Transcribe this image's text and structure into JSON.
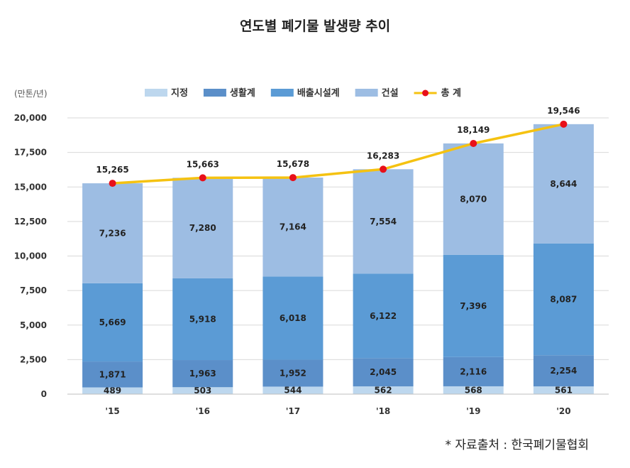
{
  "title": "연도별 폐기물 발생량 추이",
  "source": "* 자료출처 : 한국폐기물협회",
  "chart_data": {
    "type": "bar",
    "stacked": true,
    "unit": "(만톤/년)",
    "categories": [
      "'15",
      "'16",
      "'17",
      "'18",
      "'19",
      "'20"
    ],
    "ylim": [
      0,
      20000
    ],
    "yticks": [
      "0",
      "2,500",
      "5,000",
      "7,500",
      "10,000",
      "12,500",
      "15,000",
      "17,500",
      "20,000"
    ],
    "yticks_values": [
      0,
      2500,
      5000,
      7500,
      10000,
      12500,
      15000,
      17500,
      20000
    ],
    "grid": true,
    "legend_position": "top",
    "series": [
      {
        "name": "지정",
        "color": "#bdd7ee",
        "values": [
          489,
          503,
          544,
          562,
          568,
          561
        ],
        "labels": [
          "489",
          "503",
          "544",
          "562",
          "568",
          "561"
        ]
      },
      {
        "name": "생활계",
        "color": "#5b8fc9",
        "values": [
          1871,
          1963,
          1952,
          2045,
          2116,
          2254
        ],
        "labels": [
          "1,871",
          "1,963",
          "1,952",
          "2,045",
          "2,116",
          "2,254"
        ]
      },
      {
        "name": "배출시설계",
        "color": "#5b9bd5",
        "values": [
          5669,
          5918,
          6018,
          6122,
          7396,
          8087
        ],
        "labels": [
          "5,669",
          "5,918",
          "6,018",
          "6,122",
          "7,396",
          "8,087"
        ]
      },
      {
        "name": "건설",
        "color": "#9dbde3",
        "values": [
          7236,
          7280,
          7164,
          7554,
          8070,
          8644
        ],
        "labels": [
          "7,236",
          "7,280",
          "7,164",
          "7,554",
          "8,070",
          "8,644"
        ]
      }
    ],
    "total": {
      "name": "총 계",
      "line_color": "#f5c211",
      "marker_color": "#e8101a",
      "values": [
        15265,
        15663,
        15678,
        16283,
        18149,
        19546
      ],
      "labels": [
        "15,265",
        "15,663",
        "15,678",
        "16,283",
        "18,149",
        "19,546"
      ]
    }
  }
}
